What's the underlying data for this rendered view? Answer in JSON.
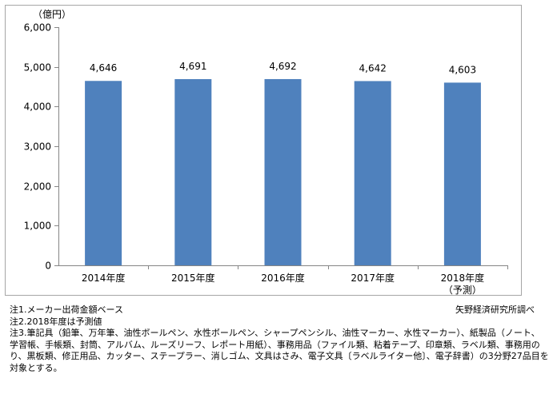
{
  "chart_data": {
    "type": "bar",
    "unit_label": "（億円）",
    "categories": [
      "2014年度",
      "2015年度",
      "2016年度",
      "2017年度",
      "2018年度"
    ],
    "category_sublabels": [
      "",
      "",
      "",
      "",
      "（予測）"
    ],
    "values": [
      4646,
      4691,
      4692,
      4642,
      4603
    ],
    "value_labels": [
      "4,646",
      "4,691",
      "4,692",
      "4,642",
      "4,603"
    ],
    "ylim": [
      0,
      6000
    ],
    "yticks": [
      0,
      1000,
      2000,
      3000,
      4000,
      5000,
      6000
    ],
    "ytick_labels": [
      "0",
      "1,000",
      "2,000",
      "3,000",
      "4,000",
      "5,000",
      "6,000"
    ],
    "bar_color": "#4f81bd",
    "grid": false,
    "legend": "none"
  },
  "notes": [
    "注1.メーカー出荷金額ベース",
    "注2.2018年度は予測値",
    "注3.筆記具（鉛筆、万年筆、油性ボールペン、水性ボールペン、シャープペンシル、油性マーカー、水性マーカー）、紙製品（ノート、",
    "学習帳、手帳類、封筒、アルバム、ルーズリーフ、レポート用紙）、事務用品（ファイル類、粘着テープ、印章類、ラベル類、事務用の",
    "り、黒板類、修正用品、カッター、ステープラー、消しゴム、文具はさみ、電子文具〔ラベルライター他〕、電子辞書）の3分野27品目を",
    "対象とする。"
  ],
  "source": "矢野経済研究所調べ"
}
